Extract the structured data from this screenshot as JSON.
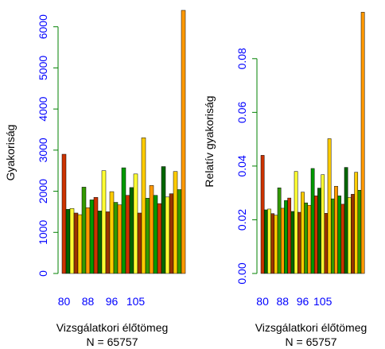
{
  "colors": {
    "axis": "#008000",
    "tick_label": "#0000ff",
    "bar_palette": [
      "#cc3300",
      "#006600",
      "#ffff33",
      "#993300",
      "#ffcc00",
      "#339900",
      "#ff9900",
      "#009900"
    ],
    "bar_outline": "#000000"
  },
  "chart_data": [
    {
      "type": "bar",
      "xlabel": "Vizsgálatkori élőtömeg",
      "note": "N =  65757",
      "ylabel": "Gyakoriság",
      "ylim": [
        0,
        6400
      ],
      "yticks": [
        0,
        1000,
        2000,
        3000,
        4000,
        5000,
        6000
      ],
      "xtick_labels": [
        "80",
        "88",
        "96",
        "105"
      ],
      "xtick_bar_index": [
        0,
        6,
        12,
        18
      ],
      "values": [
        2900,
        1560,
        1580,
        1470,
        1430,
        2100,
        1600,
        1790,
        1850,
        1520,
        2500,
        1500,
        1990,
        1730,
        1670,
        2570,
        1900,
        2090,
        2420,
        1470,
        3300,
        1830,
        2140,
        1900,
        1700,
        2600,
        1860,
        1940,
        2480,
        2040,
        6400
      ]
    },
    {
      "type": "bar",
      "xlabel": "Vizsgálatkori élőtömeg",
      "note": "N =  65757",
      "ylabel": "Relatív gyakoriság",
      "ylim": [
        0,
        0.098
      ],
      "yticks": [
        "0.00",
        "0.02",
        "0.04",
        "0.06",
        "0.08"
      ],
      "xtick_labels": [
        "80",
        "88",
        "96",
        "105"
      ],
      "xtick_bar_index": [
        0,
        6,
        12,
        18
      ],
      "values": [
        0.044,
        0.0237,
        0.024,
        0.0223,
        0.0217,
        0.0319,
        0.0243,
        0.0272,
        0.0281,
        0.0231,
        0.038,
        0.0228,
        0.0303,
        0.0263,
        0.0254,
        0.0391,
        0.0289,
        0.0318,
        0.0368,
        0.0224,
        0.0502,
        0.0278,
        0.0325,
        0.0289,
        0.0258,
        0.0395,
        0.0283,
        0.0295,
        0.0377,
        0.031,
        0.0973
      ]
    }
  ]
}
